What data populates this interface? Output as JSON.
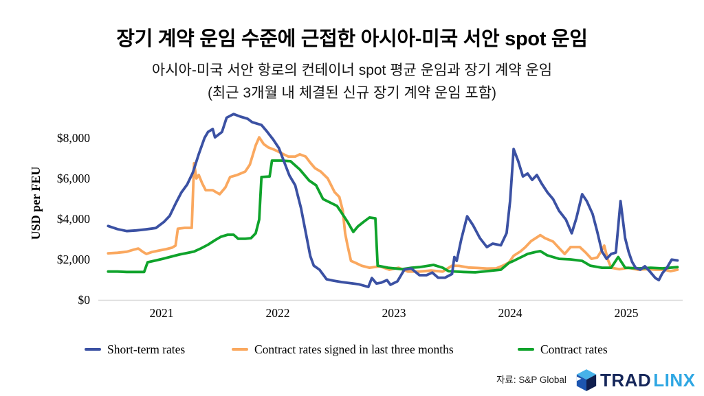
{
  "header": {
    "title": "장기 계약 운임 수준에 근접한 아시아-미국 서안 spot 운임",
    "subtitle_line1": "아시아-미국 서안 항로의 컨테이너 spot 평균 운임과 장기 계약 운임",
    "subtitle_line2": "(최근 3개월 내 체결된 신규 장기 계약 운임 포함)"
  },
  "chart_data": {
    "type": "line",
    "x_axis": {
      "unit": "year",
      "ticks": [
        2021,
        2022,
        2023,
        2024,
        2025
      ],
      "range": [
        2020.54,
        2025.44
      ]
    },
    "y_axis": {
      "label": "USD per FEU",
      "tick_labels": [
        "$0",
        "$2,000",
        "$4,000",
        "$6,000",
        "$8,000"
      ],
      "tick_values": [
        0,
        2000,
        4000,
        6000,
        8000
      ],
      "range": [
        0,
        9400
      ]
    },
    "grid": false,
    "legend_position": "bottom",
    "series": [
      {
        "name": "Short-term rates",
        "color": "#3b51a3",
        "points": [
          [
            2020.54,
            3650
          ],
          [
            2020.62,
            3500
          ],
          [
            2020.7,
            3400
          ],
          [
            2020.78,
            3430
          ],
          [
            2020.86,
            3480
          ],
          [
            2020.95,
            3550
          ],
          [
            2021.02,
            3850
          ],
          [
            2021.07,
            4150
          ],
          [
            2021.12,
            4750
          ],
          [
            2021.17,
            5300
          ],
          [
            2021.22,
            5700
          ],
          [
            2021.27,
            6300
          ],
          [
            2021.32,
            7200
          ],
          [
            2021.37,
            8000
          ],
          [
            2021.4,
            8300
          ],
          [
            2021.44,
            8440
          ],
          [
            2021.46,
            8030
          ],
          [
            2021.52,
            8300
          ],
          [
            2021.56,
            9000
          ],
          [
            2021.62,
            9180
          ],
          [
            2021.68,
            9050
          ],
          [
            2021.74,
            8950
          ],
          [
            2021.78,
            8780
          ],
          [
            2021.82,
            8710
          ],
          [
            2021.86,
            8640
          ],
          [
            2021.9,
            8370
          ],
          [
            2021.96,
            7930
          ],
          [
            2022.01,
            7500
          ],
          [
            2022.05,
            6900
          ],
          [
            2022.1,
            6150
          ],
          [
            2022.15,
            5660
          ],
          [
            2022.2,
            4540
          ],
          [
            2022.25,
            3050
          ],
          [
            2022.28,
            2170
          ],
          [
            2022.31,
            1690
          ],
          [
            2022.36,
            1490
          ],
          [
            2022.42,
            1020
          ],
          [
            2022.48,
            950
          ],
          [
            2022.55,
            880
          ],
          [
            2022.62,
            830
          ],
          [
            2022.7,
            770
          ],
          [
            2022.78,
            640
          ],
          [
            2022.81,
            1080
          ],
          [
            2022.85,
            810
          ],
          [
            2022.89,
            850
          ],
          [
            2022.94,
            980
          ],
          [
            2022.97,
            750
          ],
          [
            2023.03,
            920
          ],
          [
            2023.09,
            1500
          ],
          [
            2023.15,
            1550
          ],
          [
            2023.22,
            1220
          ],
          [
            2023.28,
            1220
          ],
          [
            2023.33,
            1350
          ],
          [
            2023.38,
            1100
          ],
          [
            2023.44,
            1100
          ],
          [
            2023.5,
            1280
          ],
          [
            2023.52,
            2120
          ],
          [
            2023.54,
            1930
          ],
          [
            2023.58,
            3000
          ],
          [
            2023.63,
            4130
          ],
          [
            2023.68,
            3700
          ],
          [
            2023.74,
            3050
          ],
          [
            2023.8,
            2610
          ],
          [
            2023.85,
            2780
          ],
          [
            2023.92,
            2700
          ],
          [
            2023.97,
            3300
          ],
          [
            2024.0,
            4900
          ],
          [
            2024.03,
            7450
          ],
          [
            2024.07,
            6850
          ],
          [
            2024.11,
            6100
          ],
          [
            2024.15,
            6240
          ],
          [
            2024.19,
            5930
          ],
          [
            2024.23,
            6170
          ],
          [
            2024.27,
            5760
          ],
          [
            2024.32,
            5320
          ],
          [
            2024.37,
            4980
          ],
          [
            2024.42,
            4410
          ],
          [
            2024.48,
            3970
          ],
          [
            2024.53,
            3290
          ],
          [
            2024.57,
            4030
          ],
          [
            2024.62,
            5220
          ],
          [
            2024.66,
            4880
          ],
          [
            2024.71,
            4240
          ],
          [
            2024.75,
            3360
          ],
          [
            2024.79,
            2400
          ],
          [
            2024.83,
            2030
          ],
          [
            2024.87,
            2270
          ],
          [
            2024.91,
            2340
          ],
          [
            2024.95,
            4880
          ],
          [
            2024.99,
            3050
          ],
          [
            2025.02,
            2370
          ],
          [
            2025.05,
            1880
          ],
          [
            2025.08,
            1590
          ],
          [
            2025.12,
            1490
          ],
          [
            2025.16,
            1660
          ],
          [
            2025.2,
            1420
          ],
          [
            2025.25,
            1080
          ],
          [
            2025.28,
            980
          ],
          [
            2025.31,
            1320
          ],
          [
            2025.35,
            1590
          ],
          [
            2025.39,
            1990
          ],
          [
            2025.44,
            1950
          ]
        ]
      },
      {
        "name": "Contract rates signed in last three months",
        "color": "#faa85f",
        "points": [
          [
            2020.54,
            2300
          ],
          [
            2020.62,
            2330
          ],
          [
            2020.7,
            2380
          ],
          [
            2020.76,
            2480
          ],
          [
            2020.8,
            2540
          ],
          [
            2020.84,
            2370
          ],
          [
            2020.87,
            2270
          ],
          [
            2020.92,
            2370
          ],
          [
            2020.98,
            2440
          ],
          [
            2021.04,
            2510
          ],
          [
            2021.09,
            2580
          ],
          [
            2021.12,
            2680
          ],
          [
            2021.14,
            3520
          ],
          [
            2021.2,
            3560
          ],
          [
            2021.26,
            3560
          ],
          [
            2021.28,
            6750
          ],
          [
            2021.3,
            6000
          ],
          [
            2021.32,
            6170
          ],
          [
            2021.35,
            5760
          ],
          [
            2021.38,
            5420
          ],
          [
            2021.44,
            5420
          ],
          [
            2021.5,
            5220
          ],
          [
            2021.55,
            5560
          ],
          [
            2021.59,
            6070
          ],
          [
            2021.65,
            6170
          ],
          [
            2021.72,
            6340
          ],
          [
            2021.76,
            6680
          ],
          [
            2021.81,
            7630
          ],
          [
            2021.84,
            8030
          ],
          [
            2021.88,
            7690
          ],
          [
            2021.92,
            7530
          ],
          [
            2021.97,
            7420
          ],
          [
            2022.03,
            7250
          ],
          [
            2022.09,
            7080
          ],
          [
            2022.15,
            7080
          ],
          [
            2022.19,
            7190
          ],
          [
            2022.24,
            7080
          ],
          [
            2022.28,
            6780
          ],
          [
            2022.32,
            6510
          ],
          [
            2022.37,
            6340
          ],
          [
            2022.43,
            6000
          ],
          [
            2022.49,
            5320
          ],
          [
            2022.53,
            5080
          ],
          [
            2022.56,
            4410
          ],
          [
            2022.58,
            3290
          ],
          [
            2022.6,
            2710
          ],
          [
            2022.63,
            1930
          ],
          [
            2022.67,
            1830
          ],
          [
            2022.72,
            1690
          ],
          [
            2022.79,
            1590
          ],
          [
            2022.88,
            1660
          ],
          [
            2022.96,
            1490
          ],
          [
            2023.04,
            1590
          ],
          [
            2023.12,
            1400
          ],
          [
            2023.22,
            1400
          ],
          [
            2023.32,
            1450
          ],
          [
            2023.42,
            1400
          ],
          [
            2023.5,
            1690
          ],
          [
            2023.56,
            1680
          ],
          [
            2023.64,
            1600
          ],
          [
            2023.72,
            1580
          ],
          [
            2023.8,
            1550
          ],
          [
            2023.88,
            1560
          ],
          [
            2023.94,
            1700
          ],
          [
            2023.99,
            1850
          ],
          [
            2024.03,
            2180
          ],
          [
            2024.09,
            2400
          ],
          [
            2024.13,
            2600
          ],
          [
            2024.18,
            2900
          ],
          [
            2024.22,
            3050
          ],
          [
            2024.26,
            3200
          ],
          [
            2024.3,
            3050
          ],
          [
            2024.37,
            2880
          ],
          [
            2024.43,
            2510
          ],
          [
            2024.47,
            2270
          ],
          [
            2024.52,
            2610
          ],
          [
            2024.6,
            2610
          ],
          [
            2024.65,
            2340
          ],
          [
            2024.7,
            2030
          ],
          [
            2024.75,
            2100
          ],
          [
            2024.78,
            2370
          ],
          [
            2024.81,
            2680
          ],
          [
            2024.84,
            2000
          ],
          [
            2024.87,
            1590
          ],
          [
            2024.94,
            1520
          ],
          [
            2025.02,
            1590
          ],
          [
            2025.1,
            1490
          ],
          [
            2025.17,
            1520
          ],
          [
            2025.25,
            1490
          ],
          [
            2025.33,
            1490
          ],
          [
            2025.38,
            1420
          ],
          [
            2025.44,
            1490
          ]
        ]
      },
      {
        "name": "Contract rates",
        "color": "#0fa32b",
        "points": [
          [
            2020.54,
            1400
          ],
          [
            2020.62,
            1400
          ],
          [
            2020.7,
            1380
          ],
          [
            2020.78,
            1380
          ],
          [
            2020.85,
            1380
          ],
          [
            2020.88,
            1860
          ],
          [
            2020.95,
            1950
          ],
          [
            2021.01,
            2030
          ],
          [
            2021.09,
            2150
          ],
          [
            2021.16,
            2250
          ],
          [
            2021.22,
            2320
          ],
          [
            2021.28,
            2390
          ],
          [
            2021.34,
            2550
          ],
          [
            2021.4,
            2730
          ],
          [
            2021.46,
            2950
          ],
          [
            2021.51,
            3120
          ],
          [
            2021.57,
            3220
          ],
          [
            2021.62,
            3220
          ],
          [
            2021.66,
            3020
          ],
          [
            2021.72,
            3020
          ],
          [
            2021.77,
            3050
          ],
          [
            2021.81,
            3290
          ],
          [
            2021.84,
            3970
          ],
          [
            2021.86,
            6070
          ],
          [
            2021.93,
            6100
          ],
          [
            2021.95,
            6880
          ],
          [
            2022.03,
            6880
          ],
          [
            2022.11,
            6850
          ],
          [
            2022.19,
            6440
          ],
          [
            2022.27,
            5900
          ],
          [
            2022.33,
            5660
          ],
          [
            2022.39,
            4980
          ],
          [
            2022.45,
            4810
          ],
          [
            2022.51,
            4640
          ],
          [
            2022.55,
            4300
          ],
          [
            2022.6,
            3860
          ],
          [
            2022.65,
            3360
          ],
          [
            2022.69,
            3630
          ],
          [
            2022.74,
            3860
          ],
          [
            2022.79,
            4070
          ],
          [
            2022.84,
            4030
          ],
          [
            2022.86,
            1690
          ],
          [
            2022.95,
            1590
          ],
          [
            2023.07,
            1520
          ],
          [
            2023.15,
            1590
          ],
          [
            2023.22,
            1620
          ],
          [
            2023.34,
            1730
          ],
          [
            2023.42,
            1590
          ],
          [
            2023.47,
            1420
          ],
          [
            2023.6,
            1380
          ],
          [
            2023.7,
            1360
          ],
          [
            2023.8,
            1420
          ],
          [
            2023.92,
            1490
          ],
          [
            2023.99,
            1830
          ],
          [
            2024.03,
            1930
          ],
          [
            2024.09,
            2100
          ],
          [
            2024.15,
            2270
          ],
          [
            2024.22,
            2370
          ],
          [
            2024.26,
            2410
          ],
          [
            2024.32,
            2200
          ],
          [
            2024.42,
            2030
          ],
          [
            2024.52,
            2000
          ],
          [
            2024.62,
            1930
          ],
          [
            2024.69,
            1690
          ],
          [
            2024.79,
            1590
          ],
          [
            2024.87,
            1590
          ],
          [
            2024.93,
            2120
          ],
          [
            2024.99,
            1590
          ],
          [
            2025.11,
            1560
          ],
          [
            2025.21,
            1590
          ],
          [
            2025.31,
            1560
          ],
          [
            2025.44,
            1620
          ]
        ]
      }
    ]
  },
  "footer": {
    "source": "자료: S&P Global",
    "logo": {
      "brand_dark": "TRAD",
      "brand_light": "LINX"
    }
  }
}
